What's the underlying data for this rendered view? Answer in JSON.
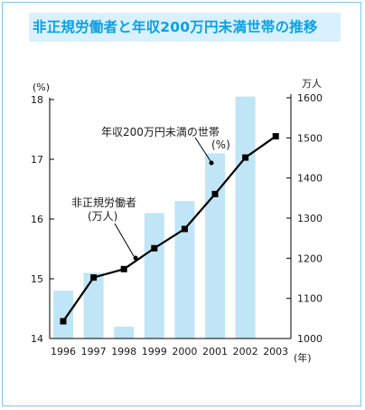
{
  "chart_data": {
    "type": "bar+line",
    "title": "非正規労働者と年収200万円未満世帯の推移",
    "categories": [
      "1996",
      "1997",
      "1998",
      "1999",
      "2000",
      "2001",
      "2002",
      "2003"
    ],
    "x_axis_unit": "(年)",
    "bar_series": {
      "name": "年収200万円未満の世帯(%)",
      "axis": "left",
      "values": [
        14.8,
        15.1,
        14.2,
        16.1,
        16.3,
        17.1,
        18.05,
        null
      ]
    },
    "line_series": {
      "name": "非正規労働者(万人)",
      "axis": "right",
      "values": [
        1043,
        1152,
        1173,
        1225,
        1273,
        1360,
        1451,
        1504
      ]
    },
    "left_axis": {
      "unit": "(%)",
      "ylim": [
        14,
        18
      ],
      "ticks": [
        "14",
        "15",
        "16",
        "17",
        "18"
      ]
    },
    "right_axis": {
      "unit": "万人",
      "ylim": [
        1000,
        1600
      ],
      "ticks": [
        "1000",
        "1100",
        "1200",
        "1300",
        "1400",
        "1500",
        "1600"
      ]
    },
    "annotations": {
      "bar_label_line1": "年収200万円未満の世帯",
      "bar_label_line2": "(%)",
      "line_label_line1": "非正規労働者",
      "line_label_line2": "(万人)"
    },
    "colors": {
      "bar": "#bfe5f7",
      "line": "#000000",
      "title_text": "#0aa0e6",
      "title_bg": "#d9f1ff",
      "frame": "#7ec8ee"
    },
    "grid": false
  }
}
